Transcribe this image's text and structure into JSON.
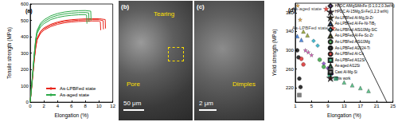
{
  "chart_data": [
    {
      "type": "line",
      "label": "(a)",
      "xlabel": "Elongation (%)",
      "ylabel": "Tensile strength (MPa)",
      "xlim": [
        0,
        12
      ],
      "xticks": [
        0,
        2,
        4,
        6,
        8,
        10,
        12
      ],
      "ylim": [
        0,
        600
      ],
      "yticks": [
        0,
        100,
        200,
        300,
        400,
        500,
        600
      ],
      "grid": false,
      "legend": "bottom",
      "series": [
        {
          "name": "As-LPBFed state",
          "color": "#e8261c",
          "x": [
            0,
            0.2,
            0.4,
            0.6,
            0.8,
            1,
            1.5,
            2,
            3,
            4,
            5,
            6,
            7,
            8,
            9,
            10,
            10.2,
            10.25
          ],
          "values": [
            0,
            80,
            170,
            260,
            330,
            380,
            420,
            440,
            462,
            476,
            485,
            490,
            493,
            495,
            496,
            496,
            490,
            440
          ]
        },
        {
          "name": "As-LPBFed state",
          "color": "#e8261c",
          "x": [
            0,
            0.2,
            0.4,
            0.6,
            0.8,
            1,
            1.5,
            2,
            3,
            4,
            5,
            6,
            7,
            8,
            9,
            10,
            10.6,
            10.65
          ],
          "values": [
            0,
            85,
            175,
            265,
            335,
            385,
            428,
            448,
            470,
            484,
            493,
            498,
            501,
            503,
            504,
            504,
            498,
            445
          ]
        },
        {
          "name": "As-LPBFed state",
          "color": "#e8261c",
          "x": [
            0,
            0.2,
            0.4,
            0.6,
            0.8,
            1,
            1.5,
            2,
            3,
            4,
            5,
            6,
            7,
            8,
            9,
            10,
            10.9,
            10.95
          ],
          "values": [
            0,
            90,
            180,
            270,
            340,
            390,
            432,
            454,
            476,
            490,
            499,
            504,
            507,
            509,
            510,
            510,
            505,
            450
          ]
        },
        {
          "name": "As-aged state",
          "color": "#2eaa4a",
          "x": [
            0,
            0.2,
            0.4,
            0.6,
            0.8,
            1,
            1.5,
            2,
            3,
            4,
            5,
            6,
            7,
            8,
            8.2,
            8.25
          ],
          "values": [
            0,
            90,
            190,
            290,
            370,
            420,
            460,
            480,
            505,
            518,
            526,
            531,
            534,
            535,
            532,
            480
          ]
        },
        {
          "name": "As-aged state",
          "color": "#2eaa4a",
          "x": [
            0,
            0.2,
            0.4,
            0.6,
            0.8,
            1,
            1.5,
            2,
            3,
            4,
            5,
            6,
            7,
            8,
            8.5,
            8.55
          ],
          "values": [
            0,
            92,
            195,
            295,
            378,
            430,
            472,
            492,
            517,
            531,
            539,
            544,
            547,
            548,
            545,
            490
          ]
        },
        {
          "name": "As-aged state",
          "color": "#2eaa4a",
          "x": [
            0,
            0.2,
            0.4,
            0.6,
            0.8,
            1,
            1.5,
            2,
            3,
            4,
            5,
            6,
            7,
            8,
            8.8,
            8.85
          ],
          "values": [
            0,
            95,
            200,
            300,
            385,
            438,
            482,
            503,
            528,
            542,
            551,
            556,
            559,
            560,
            556,
            500
          ]
        }
      ]
    },
    {
      "type": "scatter",
      "label": "(d)",
      "xlabel": "Elongation (%)",
      "ylabel": "Yield strength (MPa)",
      "xlim": [
        1,
        25
      ],
      "xticks": [
        1,
        5,
        9,
        13,
        17,
        21,
        25
      ],
      "ylim": [
        190,
        400
      ],
      "yticks": [
        220,
        260,
        300,
        340,
        380
      ],
      "grid": false,
      "legend": "upper right",
      "trend_line": {
        "x": [
          11.5,
          23.5
        ],
        "values": [
          400,
          190
        ],
        "color": "#000000"
      },
      "series": [
        {
          "name": "HPDC AlMgSiMnFe (0.1,0.2,0.3wt%)",
          "color": "#7b3fbf",
          "marker": "diamond",
          "x": [
            8,
            9,
            10
          ],
          "values": [
            272,
            262,
            250
          ]
        },
        {
          "name": "HPDC Al-15Mg₂Si-Fe(1,2,3 wt%)",
          "color": "#d63fb0",
          "marker": "star",
          "x": [
            3.5,
            4.2,
            5
          ],
          "values": [
            300,
            296,
            290
          ]
        },
        {
          "name": "As-LPBFed Al-Mg₂Si-Zr",
          "color": "#f0a020",
          "marker": "star",
          "x": [
            1.6,
            2.2
          ],
          "values": [
            395,
            365
          ]
        },
        {
          "name": "As-LPBFed Al-Fe-Ni-TiB₂",
          "color": "#2a6fd6",
          "marker": "triangle",
          "x": [
            1.5,
            2.5
          ],
          "values": [
            330,
            322
          ]
        },
        {
          "name": "As-LPBFed AlSi10Mg-SiC",
          "color": "#19a8c0",
          "marker": "diamond",
          "x": [
            5.5,
            6.5
          ],
          "values": [
            320,
            310
          ]
        },
        {
          "name": "As-LPBFed Al-Fe-Sc-Zr",
          "color": "#8a9a20",
          "marker": "triangle",
          "x": [
            3,
            4
          ],
          "values": [
            340,
            332
          ]
        },
        {
          "name": "As-LPBFed AlSi10Mg",
          "color": "#2e9e3a",
          "marker": "circle",
          "x": [
            7,
            8
          ],
          "values": [
            280,
            265
          ]
        },
        {
          "name": "As-LPBFed Al2024-Ti",
          "color": "#000000",
          "marker": "circle",
          "x": [
            1.5,
            1.8,
            2,
            2.3
          ],
          "values": [
            300,
            285,
            240,
            222
          ]
        },
        {
          "name": "As-LPBFed Al-Cu",
          "color": "#d62020",
          "marker": "circle",
          "x": [
            2.5,
            3
          ],
          "values": [
            282,
            270
          ]
        },
        {
          "name": "As-LPBFed Al12Si",
          "color": "#1a9a6a",
          "marker": "square",
          "x": [
            9.5,
            11
          ],
          "values": [
            248,
            240
          ]
        },
        {
          "name": "As-aged Al12Si",
          "color": "#3cb371",
          "marker": "triangle",
          "x": [
            13,
            15,
            17,
            19
          ],
          "values": [
            232,
            226,
            220,
            214
          ]
        },
        {
          "name": "Cast Al-Mg-Si",
          "color": "#606060",
          "marker": "square",
          "x": [
            2
          ],
          "values": [
            205
          ]
        },
        {
          "name": "This work",
          "color": "#e8261c",
          "marker": "star",
          "x": [
            8.6,
            10.2
          ],
          "values": [
            388,
            347
          ],
          "point_labels": [
            "As-aged state",
            "As-LPBFed state"
          ]
        }
      ]
    }
  ],
  "images": [
    {
      "label": "(b)",
      "annotations": [
        "Tearing",
        "Pore"
      ],
      "scale_bar": "50 μm"
    },
    {
      "label": "(c)",
      "annotations": [
        "Dimples"
      ],
      "scale_bar": "2 μm"
    }
  ]
}
